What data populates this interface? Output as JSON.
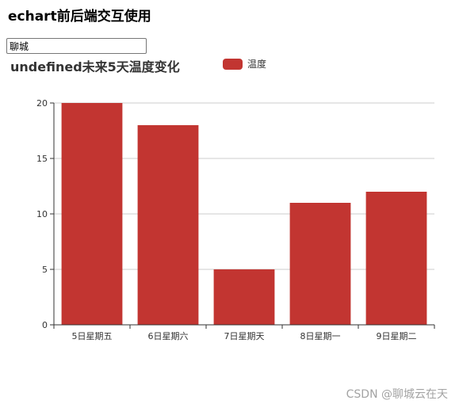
{
  "page": {
    "title": "echart前后端交互使用"
  },
  "search": {
    "value": "聊城"
  },
  "watermark": {
    "text": "CSDN @聊城云在天"
  },
  "colors": {
    "bar": "#c23531",
    "axis": "#333333",
    "grid": "#cccccc",
    "watermark": "#a3a3a3"
  },
  "chart_data": {
    "type": "bar",
    "title": "undefined未来5天温度变化",
    "legend": [
      "温度"
    ],
    "legend_position": "top-center",
    "categories": [
      "5日星期五",
      "6日星期六",
      "7日星期天",
      "8日星期一",
      "9日星期二"
    ],
    "series": [
      {
        "name": "温度",
        "values": [
          20,
          18,
          5,
          11,
          12
        ]
      }
    ],
    "ylim": [
      0,
      20
    ],
    "yticks": [
      0,
      5,
      10,
      15,
      20
    ],
    "xlabel": "",
    "ylabel": "",
    "grid": true
  }
}
